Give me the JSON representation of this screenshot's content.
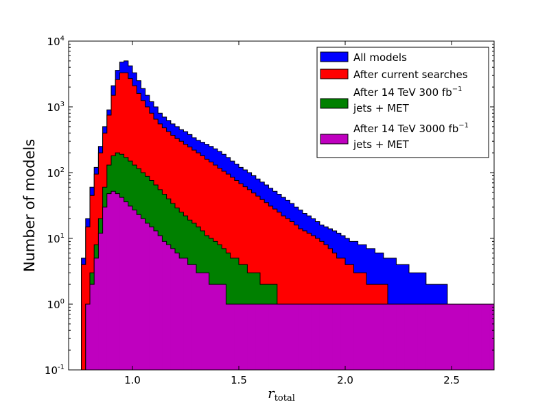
{
  "chart_data": {
    "type": "histogram",
    "xlabel_main": "r",
    "xlabel_sub": "total",
    "ylabel": "Number of models",
    "xlim": [
      0.7,
      2.7
    ],
    "ylim": [
      0.1,
      10000
    ],
    "yscale": "log",
    "x_ticks": [
      "1.0",
      "1.5",
      "2.0",
      "2.5"
    ],
    "x_tick_values": [
      1.0,
      1.5,
      2.0,
      2.5
    ],
    "y_tick_exponents": [
      "-1",
      "0",
      "1",
      "2",
      "3",
      "4"
    ],
    "y_tick_values": [
      0.1,
      1,
      10,
      100,
      1000,
      10000
    ],
    "legend_position": "upper right",
    "bin_start": 0.76,
    "bin_width": 0.02,
    "series": [
      {
        "name": "All models",
        "color": "#0000ff",
        "values": [
          5,
          20,
          60,
          120,
          250,
          500,
          900,
          2100,
          3600,
          4800,
          5000,
          4200,
          3300,
          2500,
          1900,
          1500,
          1200,
          1000,
          800,
          700,
          620,
          550,
          500,
          450,
          420,
          380,
          340,
          310,
          290,
          270,
          250,
          230,
          210,
          190,
          170,
          150,
          135,
          120,
          110,
          100,
          90,
          80,
          72,
          65,
          58,
          52,
          47,
          42,
          38,
          34,
          30,
          27,
          24,
          22,
          20,
          18,
          16,
          15,
          14,
          13,
          12,
          11,
          10,
          9,
          9,
          8,
          8,
          7,
          7,
          6,
          6,
          5,
          5,
          5,
          4,
          4,
          4,
          3,
          3,
          3,
          3,
          2,
          2,
          2,
          2,
          2,
          1,
          1,
          1,
          1,
          1,
          1,
          1,
          1,
          1,
          1,
          1,
          1,
          1
        ]
      },
      {
        "name": "After current searches",
        "color": "#ff0000",
        "values": [
          4,
          15,
          45,
          95,
          200,
          400,
          750,
          1500,
          2600,
          3300,
          3300,
          2700,
          2100,
          1600,
          1250,
          1000,
          800,
          650,
          550,
          480,
          420,
          370,
          330,
          300,
          270,
          245,
          220,
          200,
          180,
          160,
          145,
          130,
          117,
          105,
          95,
          85,
          76,
          68,
          61,
          55,
          49,
          44,
          39,
          35,
          31,
          28,
          25,
          22,
          20,
          18,
          16,
          14,
          13,
          12,
          11,
          10,
          9,
          8,
          7,
          6,
          5,
          5,
          4,
          4,
          3,
          3,
          3,
          2,
          2,
          2,
          2,
          2,
          1,
          1,
          1,
          1,
          1,
          1,
          1,
          1,
          1,
          1,
          1,
          1,
          1,
          1,
          1,
          1,
          1,
          1,
          1,
          1,
          1,
          1,
          1,
          1,
          1,
          1,
          1
        ]
      },
      {
        "name": "After 14 TeV 300 fb",
        "name_sup": "−1",
        "name_line2": "jets + MET",
        "color": "#008000",
        "values": [
          0,
          1,
          3,
          8,
          20,
          60,
          130,
          180,
          200,
          190,
          170,
          150,
          130,
          115,
          100,
          88,
          76,
          65,
          55,
          47,
          40,
          34,
          29,
          25,
          22,
          19,
          17,
          15,
          13,
          11,
          10,
          9,
          8,
          7,
          6,
          5,
          5,
          4,
          4,
          3,
          3,
          3,
          2,
          2,
          2,
          2,
          1,
          1,
          1,
          1,
          1,
          1,
          1,
          1,
          1,
          1,
          1,
          1,
          1,
          1,
          1,
          1,
          1,
          1,
          1,
          1,
          1,
          1,
          1,
          1,
          1,
          1,
          1,
          1,
          1,
          1,
          1,
          1,
          1,
          1,
          1,
          1,
          1,
          1,
          1,
          1,
          1,
          1,
          1,
          1,
          1,
          1,
          1,
          1,
          1,
          1,
          1,
          1,
          1
        ]
      },
      {
        "name": "After 14 TeV 3000 fb",
        "name_sup": "−1",
        "name_line2": "jets + MET",
        "color": "#bf00bf",
        "values": [
          0,
          1,
          2,
          5,
          12,
          30,
          48,
          52,
          48,
          42,
          36,
          31,
          27,
          23,
          20,
          17,
          15,
          13,
          11,
          9,
          8,
          7,
          6,
          5,
          5,
          4,
          4,
          3,
          3,
          3,
          2,
          2,
          2,
          2,
          1,
          1,
          1,
          1,
          1,
          1,
          1,
          1,
          1,
          1,
          1,
          1,
          1,
          1,
          1,
          1,
          1,
          1,
          1,
          1,
          1,
          1,
          1,
          1,
          1,
          1,
          1,
          1,
          1,
          1,
          1,
          1,
          1,
          1,
          1,
          1,
          1,
          1,
          1,
          1,
          1,
          1,
          1,
          1,
          1,
          1,
          1,
          1,
          1,
          1,
          1,
          1,
          1,
          1,
          1,
          1,
          1,
          1,
          1,
          1,
          1,
          1,
          1,
          1,
          1
        ]
      }
    ]
  }
}
